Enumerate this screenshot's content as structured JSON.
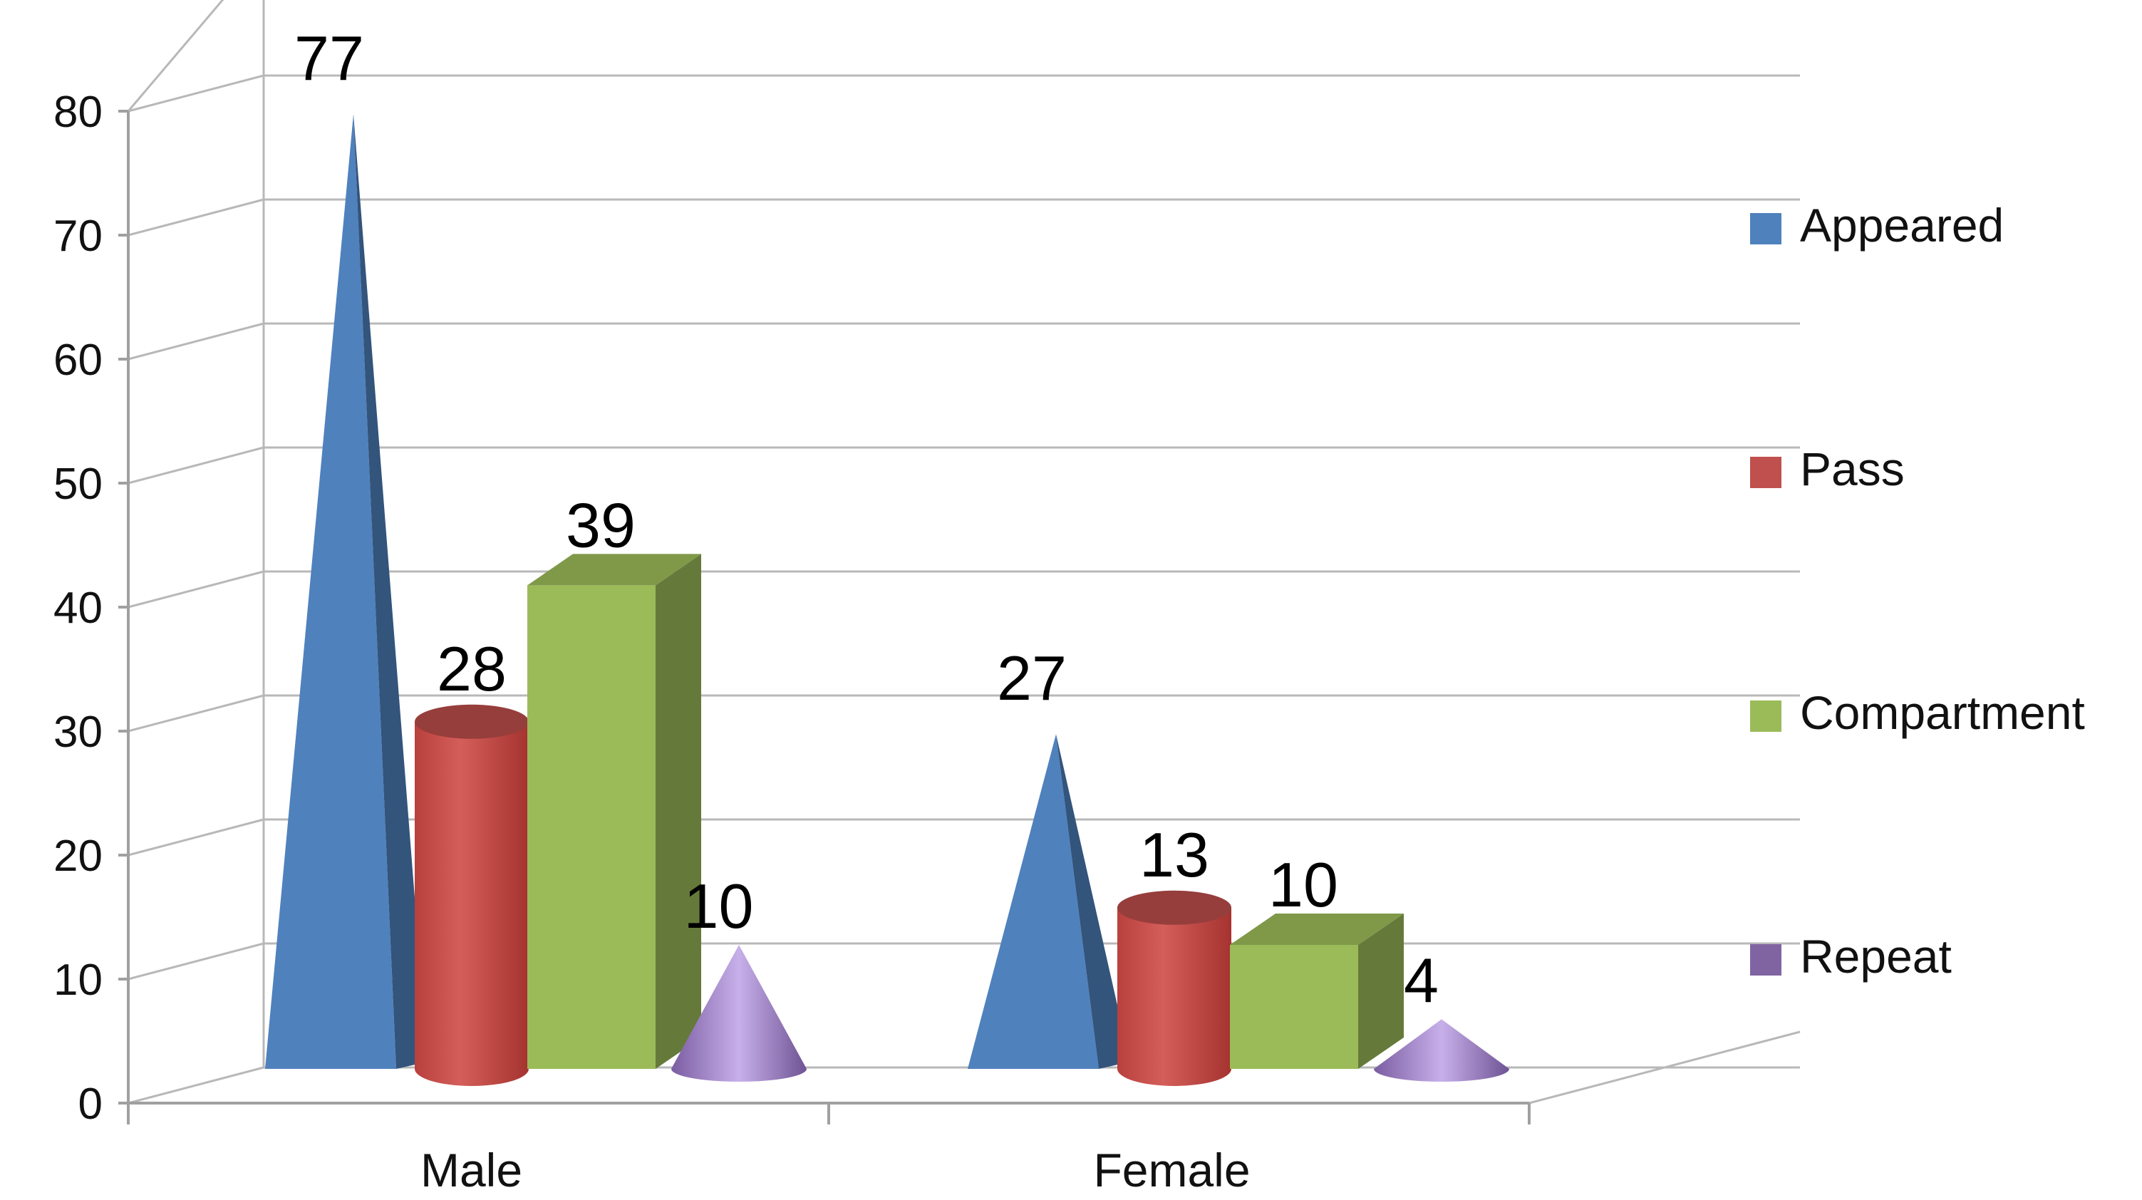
{
  "chart_data": {
    "type": "bar",
    "title": "",
    "xlabel": "",
    "ylabel": "",
    "ylim": [
      0,
      80
    ],
    "yticks": [
      0,
      10,
      20,
      30,
      40,
      50,
      60,
      70,
      80
    ],
    "grid": true,
    "legend_position": "right",
    "categories": [
      "Male",
      "Female"
    ],
    "series": [
      {
        "name": "Appeared",
        "shape": "pyramid",
        "color": "#4F81BD",
        "values": [
          77,
          27
        ]
      },
      {
        "name": "Pass",
        "shape": "cylinder",
        "color": "#C0504D",
        "values": [
          28,
          13
        ]
      },
      {
        "name": "Compartment",
        "shape": "box",
        "color": "#9BBB59",
        "values": [
          39,
          10
        ]
      },
      {
        "name": "Repeat",
        "shape": "cone",
        "color": "#8064A2",
        "values": [
          10,
          4
        ]
      }
    ]
  }
}
